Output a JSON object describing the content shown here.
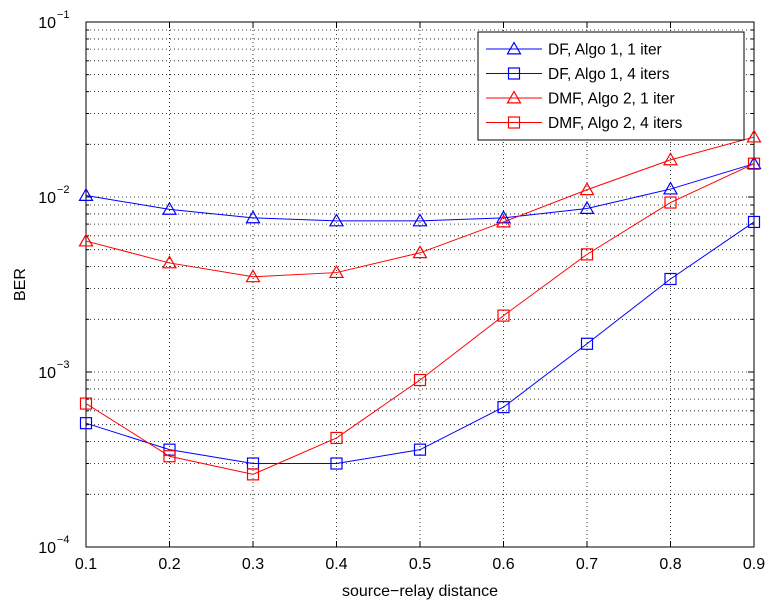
{
  "chart_data": {
    "type": "line",
    "title": "",
    "xlabel": "source−relay distance",
    "ylabel": "BER",
    "x": [
      0.1,
      0.2,
      0.3,
      0.4,
      0.5,
      0.6,
      0.7,
      0.8,
      0.9
    ],
    "xlim": [
      0.1,
      0.9
    ],
    "ylim": [
      0.0001,
      0.1
    ],
    "yscale": "log",
    "grid": true,
    "legend_position": "top-right",
    "x_ticks": [
      "0.1",
      "0.2",
      "0.3",
      "0.4",
      "0.5",
      "0.6",
      "0.7",
      "0.8",
      "0.9"
    ],
    "y_ticks": [
      {
        "value": 0.1,
        "base": "10",
        "exp": "−1"
      },
      {
        "value": 0.01,
        "base": "10",
        "exp": "−2"
      },
      {
        "value": 0.001,
        "base": "10",
        "exp": "−3"
      },
      {
        "value": 0.0001,
        "base": "10",
        "exp": "−4"
      }
    ],
    "series": [
      {
        "name": "DF, Algo 1, 1 iter",
        "color": "#0000ff",
        "marker": "triangle",
        "values": [
          0.0102,
          0.0085,
          0.0076,
          0.0073,
          0.0073,
          0.0076,
          0.0086,
          0.0111,
          0.0155
        ]
      },
      {
        "name": "DF, Algo 1, 4 iters",
        "color": "#0000ff",
        "marker": "square",
        "values": [
          0.00051,
          0.00036,
          0.0003,
          0.0003,
          0.00036,
          0.00063,
          0.00145,
          0.0034,
          0.0072
        ]
      },
      {
        "name": "DMF, Algo 2, 1 iter",
        "color": "#ff0000",
        "marker": "triangle",
        "values": [
          0.0056,
          0.0042,
          0.0035,
          0.0037,
          0.0048,
          0.0072,
          0.011,
          0.0163,
          0.022
        ]
      },
      {
        "name": "DMF, Algo 2, 4 iters",
        "color": "#ff0000",
        "marker": "square",
        "values": [
          0.00066,
          0.00033,
          0.00026,
          0.00042,
          0.0009,
          0.0021,
          0.0047,
          0.0093,
          0.0155
        ]
      }
    ]
  }
}
